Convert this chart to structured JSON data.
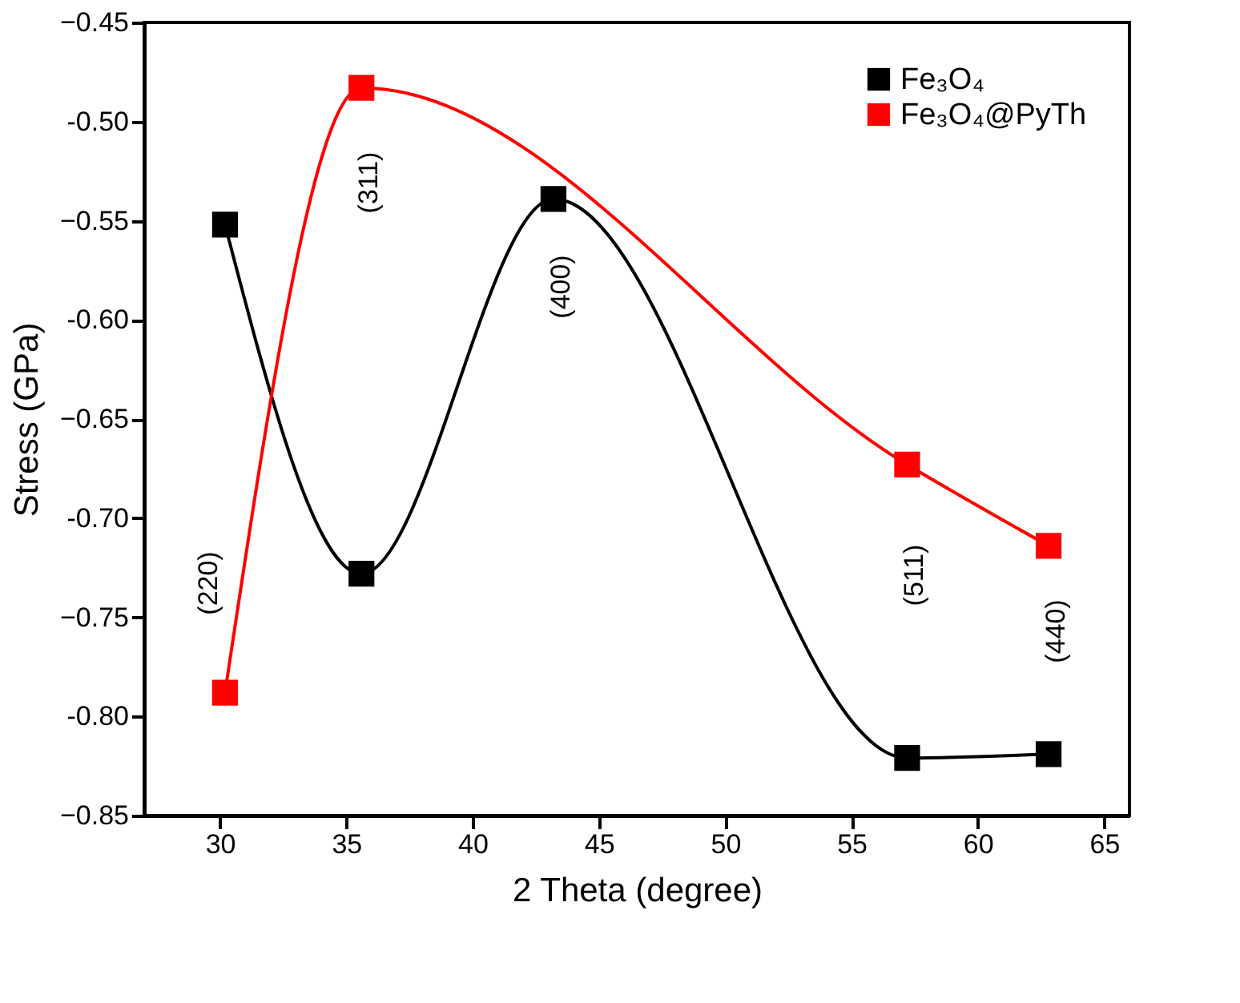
{
  "chart_data": {
    "type": "line",
    "xlabel": "2 Theta (degree)",
    "ylabel": "Stress (GPa)",
    "xlim": [
      27,
      66
    ],
    "xticks": [
      30,
      35,
      40,
      45,
      50,
      55,
      60,
      65
    ],
    "ylim": [
      -0.85,
      -0.45
    ],
    "yticks": [
      -0.85,
      {
        "value": -0.8,
        "label": "-0.80"
      },
      -0.75,
      {
        "value": -0.7,
        "label": "-0.70"
      },
      -0.65,
      {
        "value": -0.6,
        "label": "-0.60"
      },
      -0.55,
      {
        "value": -0.5,
        "label": "-0.50"
      },
      -0.45
    ],
    "marker": "square",
    "line_style": "solid",
    "legend": "top right",
    "grid": false,
    "series": [
      {
        "name": "Fe₃O₄",
        "color": "#000000",
        "x": [
          30.2,
          35.6,
          43.2,
          57.2,
          62.8
        ],
        "values": [
          -0.552,
          -0.728,
          -0.539,
          -0.821,
          -0.819
        ]
      },
      {
        "name": "Fe₃O₄@PyTh",
        "color": "#ff0000",
        "x": [
          30.2,
          35.6,
          57.2,
          62.8
        ],
        "values": [
          -0.788,
          -0.483,
          -0.673,
          -0.714
        ]
      }
    ],
    "annotations": [
      "(220)",
      "(311)",
      "(400)",
      "(511)",
      "(440)"
    ]
  }
}
